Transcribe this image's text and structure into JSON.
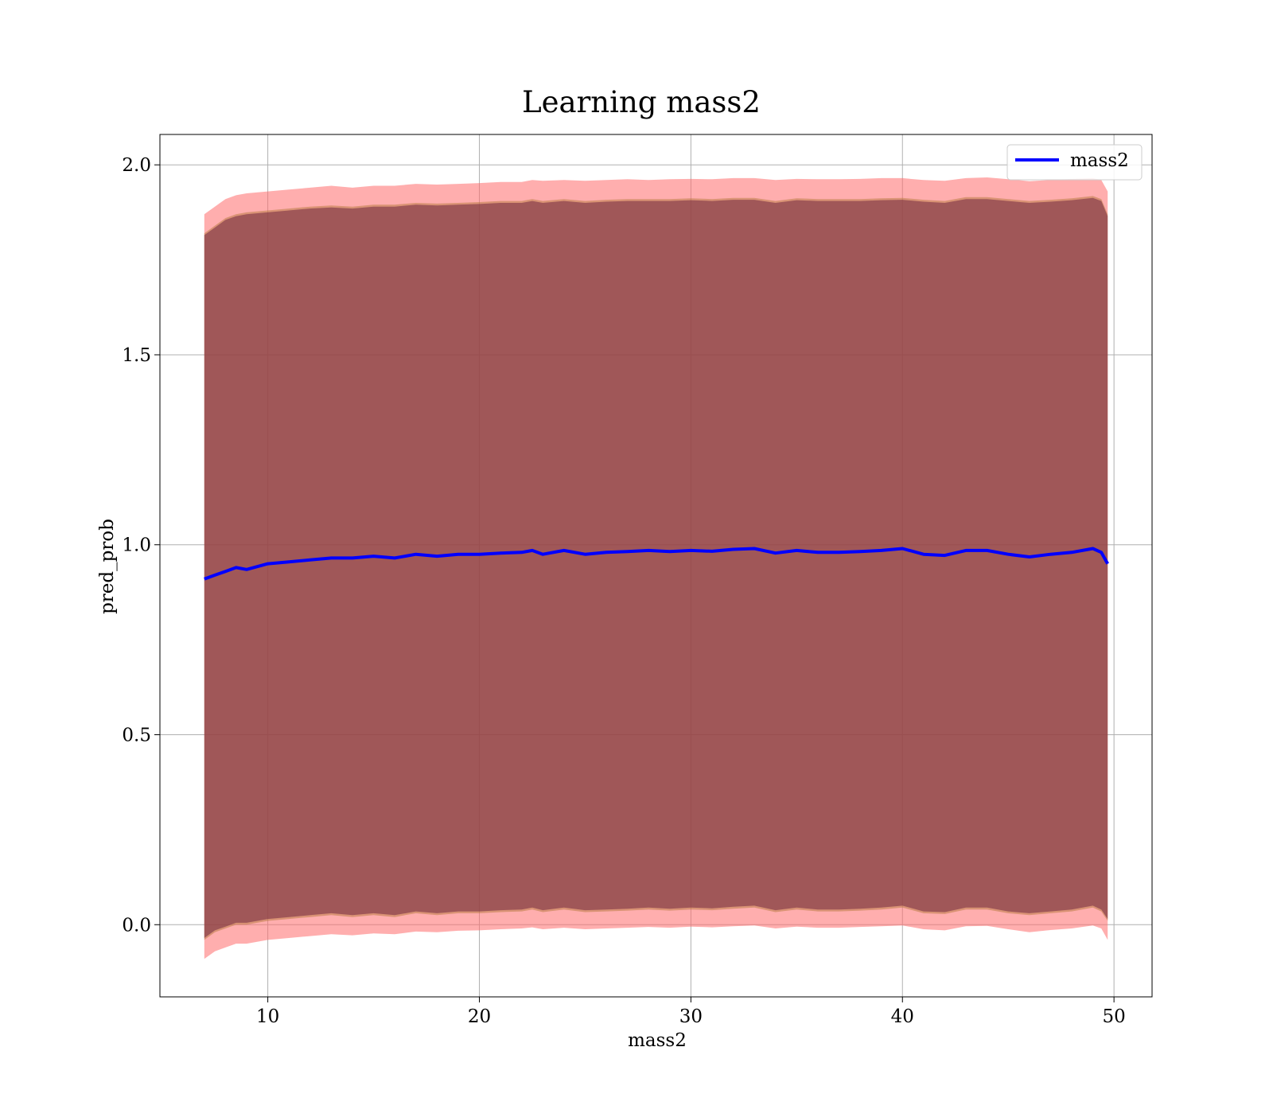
{
  "chart_data": {
    "type": "line",
    "title": "Learning mass2",
    "xlabel": "mass2",
    "ylabel": "pred_prob",
    "xlim": [
      4.9,
      51.8
    ],
    "ylim": [
      -0.19,
      2.08
    ],
    "xticks": [
      10,
      20,
      30,
      40,
      50
    ],
    "yticks": [
      0.0,
      0.5,
      1.0,
      1.5,
      2.0
    ],
    "xtick_labels": [
      "10",
      "20",
      "30",
      "40",
      50
    ],
    "ytick_labels": [
      "0.0",
      "0.5",
      "1.0",
      "1.5",
      "2.0"
    ],
    "grid": true,
    "legend_position": "top-right",
    "colors": {
      "line": "#0000ff",
      "band_outer": "#ff6b6b",
      "band_mid": "#b5773c",
      "band_inner": "#7a2f45",
      "grid": "#b0b0b0"
    },
    "series": [
      {
        "name": "mass2",
        "x": [
          7.0,
          7.5,
          8.0,
          8.5,
          9.0,
          10.0,
          11.0,
          12.0,
          13.0,
          14.0,
          15.0,
          16.0,
          17.0,
          18.0,
          19.0,
          20.0,
          21.0,
          22.0,
          22.5,
          23.0,
          24.0,
          25.0,
          26.0,
          27.0,
          28.0,
          29.0,
          30.0,
          31.0,
          32.0,
          33.0,
          34.0,
          35.0,
          36.0,
          37.0,
          38.0,
          39.0,
          40.0,
          41.0,
          42.0,
          43.0,
          44.0,
          45.0,
          46.0,
          47.0,
          48.0,
          49.0,
          49.4,
          49.7
        ],
        "values": [
          0.91,
          0.92,
          0.93,
          0.94,
          0.935,
          0.95,
          0.955,
          0.96,
          0.965,
          0.965,
          0.97,
          0.965,
          0.975,
          0.97,
          0.975,
          0.975,
          0.978,
          0.98,
          0.985,
          0.975,
          0.985,
          0.975,
          0.98,
          0.982,
          0.985,
          0.982,
          0.985,
          0.983,
          0.988,
          0.99,
          0.978,
          0.985,
          0.98,
          0.98,
          0.982,
          0.985,
          0.99,
          0.975,
          0.972,
          0.985,
          0.985,
          0.975,
          0.968,
          0.975,
          0.98,
          0.99,
          0.98,
          0.95
        ],
        "upper_outer": [
          1.87,
          1.89,
          1.91,
          1.92,
          1.925,
          1.93,
          1.935,
          1.94,
          1.945,
          1.94,
          1.945,
          1.945,
          1.95,
          1.948,
          1.95,
          1.952,
          1.955,
          1.955,
          1.96,
          1.958,
          1.96,
          1.958,
          1.96,
          1.962,
          1.96,
          1.962,
          1.963,
          1.962,
          1.965,
          1.965,
          1.96,
          1.963,
          1.962,
          1.962,
          1.963,
          1.965,
          1.965,
          1.96,
          1.958,
          1.965,
          1.967,
          1.962,
          1.957,
          1.96,
          1.963,
          1.965,
          1.96,
          1.93
        ],
        "upper_inner": [
          1.82,
          1.84,
          1.86,
          1.87,
          1.875,
          1.88,
          1.885,
          1.89,
          1.893,
          1.89,
          1.895,
          1.895,
          1.9,
          1.898,
          1.9,
          1.902,
          1.905,
          1.905,
          1.91,
          1.905,
          1.91,
          1.905,
          1.908,
          1.91,
          1.91,
          1.91,
          1.912,
          1.91,
          1.913,
          1.913,
          1.905,
          1.912,
          1.91,
          1.91,
          1.91,
          1.912,
          1.913,
          1.908,
          1.905,
          1.915,
          1.915,
          1.91,
          1.905,
          1.908,
          1.912,
          1.918,
          1.91,
          1.87
        ],
        "lower_inner": [
          -0.04,
          -0.02,
          -0.01,
          0.0,
          0.0,
          0.01,
          0.015,
          0.02,
          0.025,
          0.02,
          0.025,
          0.02,
          0.03,
          0.025,
          0.03,
          0.03,
          0.033,
          0.035,
          0.04,
          0.033,
          0.04,
          0.033,
          0.035,
          0.037,
          0.04,
          0.037,
          0.04,
          0.038,
          0.042,
          0.045,
          0.033,
          0.04,
          0.035,
          0.035,
          0.037,
          0.04,
          0.045,
          0.03,
          0.028,
          0.04,
          0.04,
          0.03,
          0.025,
          0.03,
          0.035,
          0.045,
          0.035,
          0.01
        ],
        "lower_outer": [
          -0.09,
          -0.07,
          -0.06,
          -0.05,
          -0.05,
          -0.04,
          -0.035,
          -0.03,
          -0.025,
          -0.028,
          -0.023,
          -0.025,
          -0.018,
          -0.02,
          -0.016,
          -0.015,
          -0.012,
          -0.01,
          -0.007,
          -0.012,
          -0.008,
          -0.012,
          -0.01,
          -0.008,
          -0.006,
          -0.008,
          -0.005,
          -0.007,
          -0.004,
          -0.002,
          -0.01,
          -0.005,
          -0.008,
          -0.008,
          -0.006,
          -0.004,
          -0.002,
          -0.012,
          -0.015,
          -0.004,
          -0.003,
          -0.012,
          -0.02,
          -0.014,
          -0.01,
          -0.002,
          -0.01,
          -0.04
        ]
      }
    ]
  }
}
